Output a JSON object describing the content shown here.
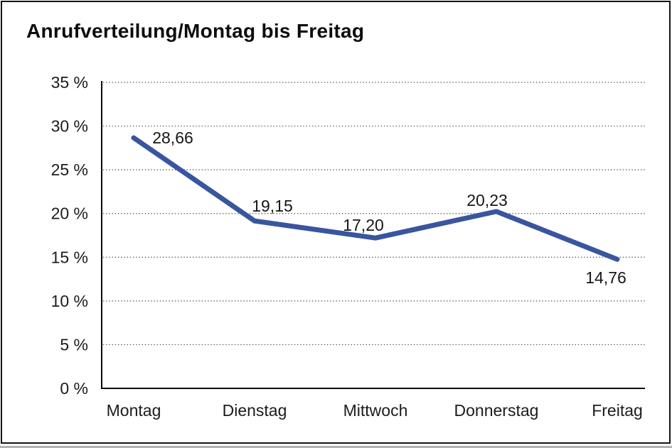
{
  "page": {
    "title": "Anrufverteilung/Montag bis Freitag"
  },
  "chart_data": {
    "type": "line",
    "title": "Anrufverteilung/Montag bis Freitag",
    "categories": [
      "Montag",
      "Dienstag",
      "Mittwoch",
      "Donnerstag",
      "Freitag"
    ],
    "values": [
      28.66,
      19.15,
      17.2,
      20.23,
      14.76
    ],
    "value_labels": [
      "28,66",
      "19,15",
      "17,20",
      "20,23",
      "14,76"
    ],
    "xlabel": "",
    "ylabel": "",
    "ylim": [
      0,
      35
    ],
    "ytick_step": 5,
    "ytick_labels": [
      "0 %",
      "5 %",
      "10 %",
      "15 %",
      "20 %",
      "25 %",
      "30 %",
      "35 %"
    ],
    "grid": "horizontal-dotted",
    "legend": "none",
    "line_color": "#3A55A0",
    "axis_color": "#0a0a0a",
    "text_color": "#1b1b1b"
  }
}
